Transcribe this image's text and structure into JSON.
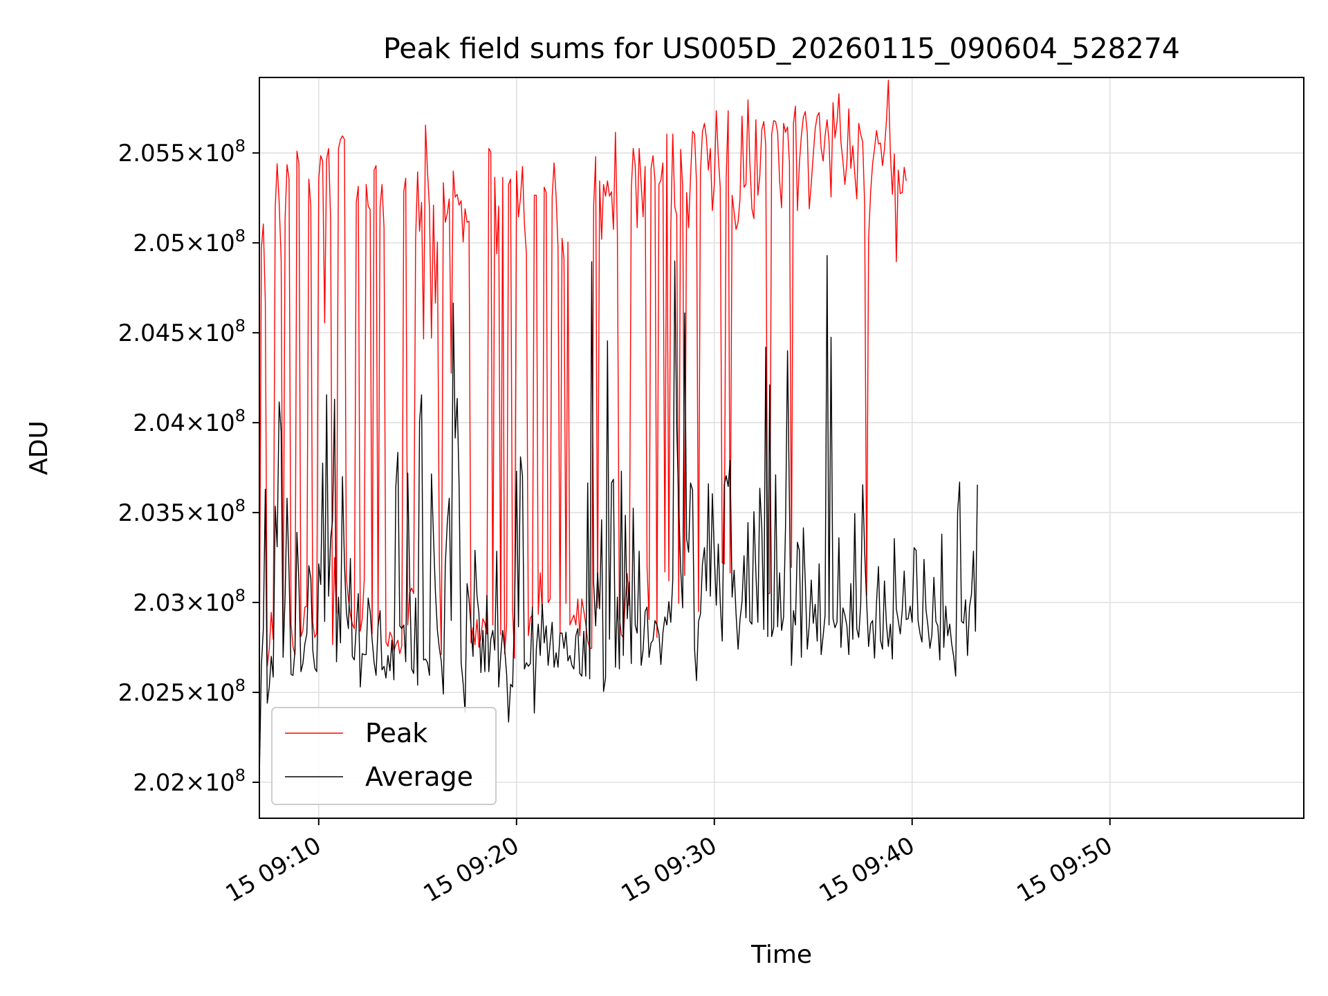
{
  "chart_data": {
    "type": "line",
    "title": "Peak field sums for US005D_20260115_090604_528274",
    "xlabel": "Time",
    "ylabel": "ADU",
    "xlim": [
      "2026-01-15 09:07:00",
      "2026-01-15 09:59:48"
    ],
    "ylim": [
      201800000,
      205920000
    ],
    "x_ticks": [
      "15 09:10",
      "15 09:20",
      "15 09:30",
      "15 09:40",
      "15 09:50"
    ],
    "y_ticks": [
      {
        "mantissa": "2.02",
        "exponent": "8",
        "value": 202000000
      },
      {
        "mantissa": "2.025",
        "exponent": "8",
        "value": 202500000
      },
      {
        "mantissa": "2.03",
        "exponent": "8",
        "value": 203000000
      },
      {
        "mantissa": "2.035",
        "exponent": "8",
        "value": 203500000
      },
      {
        "mantissa": "2.04",
        "exponent": "8",
        "value": 204000000
      },
      {
        "mantissa": "2.045",
        "exponent": "8",
        "value": 204500000
      },
      {
        "mantissa": "2.05",
        "exponent": "8",
        "value": 205000000
      },
      {
        "mantissa": "2.055",
        "exponent": "8",
        "value": 205500000
      }
    ],
    "grid": true,
    "legend_position": "lower-left",
    "start_time": "09:07:00",
    "sample_step_seconds": 6,
    "series": [
      {
        "name": "Peak",
        "color": "#ff0000",
        "values": [
          202650000,
          204970000,
          205105000,
          204670000,
          202645000,
          202740000,
          202945000,
          202795000,
          205195000,
          205440000,
          205225000,
          204905000,
          202770000,
          205135000,
          205435000,
          205355000,
          202880000,
          202755000,
          202710000,
          205510000,
          205440000,
          202810000,
          202845000,
          202975000,
          202980000,
          205355000,
          205205000,
          202890000,
          202805000,
          202830000,
          205355000,
          205485000,
          205455000,
          204555000,
          205465000,
          205525000,
          205125000,
          202765000,
          203250000,
          202940000,
          205525000,
          205575000,
          205595000,
          205575000,
          203135000,
          203020000,
          202930000,
          202880000,
          202855000,
          205225000,
          205315000,
          202840000,
          202910000,
          203125000,
          205325000,
          205205000,
          205185000,
          202825000,
          205405000,
          205430000,
          202870000,
          205200000,
          205325000,
          205085000,
          202780000,
          202755000,
          202835000,
          202810000,
          202730000,
          202765000,
          202790000,
          202715000,
          202760000,
          205285000,
          205360000,
          202875000,
          203055000,
          203080000,
          203050000,
          205025000,
          205395000,
          205065000,
          205225000,
          204465000,
          205655000,
          205395000,
          205195000,
          204470000,
          205210000,
          204665000,
          205005000,
          203235000,
          202710000,
          205335000,
          205115000,
          205165000,
          205245000,
          204275000,
          205400000,
          205255000,
          205270000,
          205210000,
          205235000,
          205005000,
          205190000,
          205115000,
          205120000,
          202775000,
          202860000,
          202765000,
          202905000,
          202750000,
          202810000,
          202910000,
          202885000,
          202825000,
          205525000,
          205505000,
          202875000,
          205365000,
          204940000,
          205205000,
          202820000,
          205365000,
          202715000,
          202880000,
          205325000,
          205355000,
          202960000,
          202690000,
          205400000,
          205145000,
          205250000,
          205425000,
          205105000,
          204940000,
          202815000,
          202915000,
          202930000,
          205265000,
          205265000,
          202935000,
          203165000,
          202945000,
          205310000,
          205280000,
          203000000,
          203020000,
          205255000,
          205445000,
          205260000,
          204970000,
          202830000,
          205025000,
          204910000,
          202995000,
          205005000,
          202875000,
          202905000,
          202930000,
          202875000,
          203020000,
          202815000,
          203020000,
          202955000,
          202880000,
          202785000,
          202745000,
          202745000,
          205205000,
          205480000,
          202970000,
          205345000,
          205020000,
          205325000,
          205260000,
          205345000,
          205260000,
          205285000,
          205075000,
          205615000,
          205050000,
          202915000,
          202820000,
          202805000,
          203015000,
          203160000,
          202985000,
          205295000,
          205525000,
          205430000,
          205085000,
          205525000,
          205330000,
          205145000,
          205425000,
          203200000,
          202905000,
          205415000,
          205485000,
          205345000,
          202805000,
          205325000,
          205350000,
          205445000,
          203170000,
          205605000,
          203120000,
          205075000,
          205605000,
          205200000,
          205155000,
          202995000,
          205520000,
          205315000,
          203150000,
          205280000,
          205085000,
          205370000,
          205620000,
          205605000,
          205335000,
          202950000,
          205395000,
          205620000,
          205665000,
          205585000,
          205405000,
          205525000,
          205180000,
          205330000,
          205735000,
          205480000,
          205310000,
          203220000,
          203215000,
          205365000,
          205735000,
          203165000,
          205265000,
          205170000,
          205075000,
          205115000,
          205245000,
          205705000,
          205310000,
          205325000,
          205795000,
          205440000,
          205190000,
          205135000,
          205685000,
          205265000,
          205370000,
          205630000,
          205675000,
          205545000,
          203050000,
          203050000,
          205605000,
          205680000,
          205675000,
          205615000,
          205350000,
          205195000,
          205665000,
          205615000,
          205645000,
          205440000,
          203195000,
          205665000,
          205760000,
          205180000,
          205440000,
          205595000,
          205700000,
          205730000,
          205610000,
          205190000,
          205330000,
          205490000,
          205635000,
          205705000,
          205725000,
          205525000,
          205455000,
          205595000,
          205685000,
          205565000,
          205255000,
          205780000,
          205585000,
          205670000,
          205830000,
          205560000,
          205455000,
          205325000,
          205445000,
          205745000,
          205415000,
          205540000,
          205385000,
          205245000,
          205665000,
          205605000,
          205560000,
          205210000,
          203040000,
          205025000,
          205280000,
          205440000,
          205525000,
          205625000,
          205550000,
          205555000,
          205430000,
          205520000,
          205680000,
          205905000,
          205500000,
          205270000,
          205495000,
          204895000,
          205405000,
          205275000,
          205280000,
          205420000,
          205345000
        ]
      },
      {
        "name": "Average",
        "color": "#000000",
        "values": [
          202030000,
          202650000,
          202850000,
          203630000,
          202440000,
          202530000,
          202700000,
          202585000,
          203535000,
          203310000,
          204115000,
          203950000,
          202695000,
          203035000,
          203580000,
          203170000,
          202600000,
          202595000,
          202735000,
          203390000,
          203105000,
          202615000,
          202660000,
          202770000,
          202825000,
          203205000,
          203135000,
          202735000,
          202635000,
          202615000,
          203215000,
          203100000,
          203775000,
          202895000,
          204155000,
          203035000,
          203355000,
          203455000,
          204130000,
          202670000,
          203030000,
          202775000,
          203700000,
          203220000,
          202945000,
          202855000,
          203245000,
          202700000,
          202680000,
          202870000,
          203050000,
          202530000,
          202715000,
          202710000,
          202710000,
          203025000,
          202950000,
          202795000,
          202665000,
          202595000,
          202870000,
          202955000,
          202625000,
          202645000,
          202580000,
          202705000,
          202620000,
          202790000,
          202570000,
          203645000,
          203835000,
          202870000,
          202855000,
          202875000,
          202670000,
          203720000,
          203120000,
          202630000,
          202605000,
          203025000,
          202540000,
          204005000,
          204155000,
          202680000,
          202685000,
          202665000,
          202595000,
          203715000,
          203370000,
          203060000,
          202845000,
          202745000,
          202670000,
          202490000,
          203210000,
          203445000,
          203580000,
          202900000,
          204665000,
          203915000,
          204135000,
          203645000,
          202665000,
          202550000,
          202390000,
          203105000,
          203020000,
          202865000,
          202700000,
          203290000,
          203040000,
          202940000,
          202610000,
          202845000,
          202615000,
          203040000,
          202615000,
          202795000,
          202845000,
          202735000,
          203285000,
          202530000,
          202700000,
          202845000,
          202745000,
          202600000,
          202335000,
          202545000,
          202530000,
          202955000,
          203730000,
          202865000,
          203810000,
          203705000,
          202630000,
          202665000,
          202645000,
          202660000,
          202975000,
          202385000,
          202740000,
          202880000,
          202705000,
          202990000,
          202775000,
          202870000,
          202650000,
          202775000,
          202890000,
          202640000,
          202720000,
          202640000,
          202830000,
          202830000,
          202745000,
          202835000,
          202675000,
          202705000,
          202650000,
          202630000,
          202815000,
          202855000,
          202605000,
          202590000,
          202840000,
          202590000,
          203665000,
          202575000,
          204895000,
          203105000,
          202870000,
          203165000,
          202965000,
          203460000,
          202505000,
          202580000,
          204455000,
          202795000,
          203665000,
          203685000,
          202640000,
          203030000,
          202630000,
          203730000,
          202705000,
          203485000,
          202910000,
          203115000,
          202660000,
          203525000,
          202875000,
          202830000,
          203285000,
          202650000,
          202735000,
          202950000,
          202975000,
          202695000,
          202775000,
          202790000,
          202900000,
          202875000,
          202825000,
          202655000,
          202830000,
          202920000,
          202875000,
          203005000,
          202890000,
          203125000,
          204900000,
          203975000,
          203550000,
          203185000,
          202970000,
          204610000,
          203355000,
          203280000,
          203665000,
          203625000,
          202740000,
          202565000,
          202895000,
          202935000,
          203215000,
          203305000,
          203065000,
          203660000,
          203035000,
          203605000,
          203265000,
          202985000,
          203325000,
          203005000,
          202785000,
          203655000,
          203705000,
          203645000,
          203790000,
          203030000,
          203180000,
          202935000,
          202740000,
          202905000,
          203005000,
          203260000,
          202915000,
          203445000,
          202895000,
          202880000,
          203505000,
          203170000,
          202890000,
          203635000,
          203415000,
          202850000,
          204420000,
          202810000,
          204210000,
          202810000,
          202860000,
          203710000,
          202865000,
          203165000,
          202845000,
          202920000,
          203425000,
          204400000,
          203540000,
          202650000,
          202955000,
          202875000,
          203335000,
          203290000,
          202695000,
          203415000,
          203110000,
          202740000,
          202875000,
          203125000,
          202885000,
          202990000,
          202785000,
          203215000,
          202710000,
          202815000,
          202930000,
          204930000,
          202875000,
          204475000,
          202910000,
          202860000,
          202890000,
          203360000,
          202750000,
          202970000,
          202930000,
          202870000,
          202710000,
          203105000,
          202795000,
          203495000,
          202855000,
          202805000,
          202990000,
          203655000,
          203285000,
          203000000,
          202755000,
          202880000,
          202900000,
          202690000,
          203005000,
          203200000,
          202790000,
          202740000,
          203120000,
          202880000,
          202755000,
          202880000,
          202685000,
          203355000,
          202965000,
          202900000,
          202825000,
          202960000,
          203175000,
          202905000,
          202910000,
          202980000,
          202890000,
          203305000,
          203290000,
          202900000,
          202825000,
          202780000,
          203240000,
          202960000,
          202870000,
          202745000,
          202820000,
          203140000,
          202895000,
          202870000,
          202680000,
          203380000,
          202750000,
          202980000,
          202815000,
          202880000,
          202770000,
          202700000,
          202590000,
          203500000,
          203670000,
          202895000,
          202885000,
          203015000,
          202705000,
          202975000,
          203045000,
          203285000,
          202840000,
          203655000
        ]
      }
    ]
  }
}
